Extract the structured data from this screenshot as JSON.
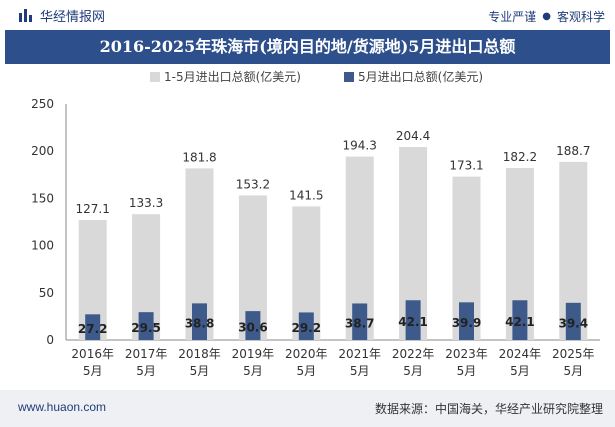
{
  "header": {
    "brand": "华经情报网",
    "slogan_left": "专业严谨",
    "slogan_right": "客观科学"
  },
  "footer": {
    "url": "www.huaon.com",
    "source": "数据来源：中国海关，华经产业研究院整理"
  },
  "colors": {
    "total_bar": "#d9d9d9",
    "may_bar": "#3e5a8a",
    "title_bg": "#2d4f8c"
  },
  "chart_data": {
    "type": "bar",
    "title": "2016-2025年珠海市(境内目的地/货源地)5月进出口总额",
    "categories": [
      [
        "2016年",
        "5月"
      ],
      [
        "2017年",
        "5月"
      ],
      [
        "2018年",
        "5月"
      ],
      [
        "2019年",
        "5月"
      ],
      [
        "2020年",
        "5月"
      ],
      [
        "2021年",
        "5月"
      ],
      [
        "2022年",
        "5月"
      ],
      [
        "2023年",
        "5月"
      ],
      [
        "2024年",
        "5月"
      ],
      [
        "2025年",
        "5月"
      ]
    ],
    "series": [
      {
        "name": "1-5月进出口总额(亿美元)",
        "values": [
          127.1,
          133.3,
          181.8,
          153.2,
          141.5,
          194.3,
          204.4,
          173.1,
          182.2,
          188.7
        ]
      },
      {
        "name": "5月进出口总额(亿美元)",
        "values": [
          27.2,
          29.5,
          38.8,
          30.6,
          29.2,
          38.7,
          42.1,
          39.9,
          42.1,
          39.4
        ]
      }
    ],
    "yticks": [
      0,
      50,
      100,
      150,
      200,
      250
    ],
    "ylim": [
      0,
      250
    ],
    "grid": false,
    "legend": "top-center",
    "overlapped_bars": true
  }
}
